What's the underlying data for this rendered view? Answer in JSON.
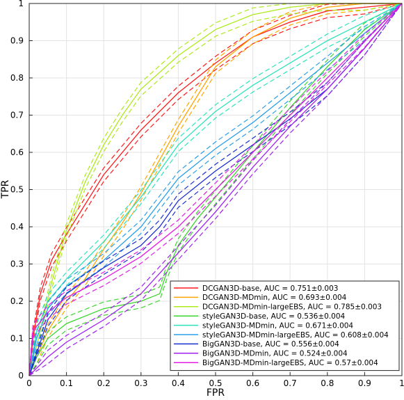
{
  "chart_data": {
    "type": "line",
    "xlabel": "FPR",
    "ylabel": "TPR",
    "xlim": [
      0,
      1
    ],
    "ylim": [
      0,
      1
    ],
    "grid": true,
    "legend_position": "bottom-right",
    "xticks": [
      "0",
      "0.1",
      "0.2",
      "0.3",
      "0.4",
      "0.5",
      "0.6",
      "0.7",
      "0.8",
      "0.9",
      "1"
    ],
    "yticks": [
      "0",
      "0.1",
      "0.2",
      "0.3",
      "0.4",
      "0.5",
      "0.6",
      "0.7",
      "0.8",
      "0.9",
      "1"
    ],
    "series": [
      {
        "name": "DCGAN3D-base, AUC = 0.751±0.003",
        "color": "#ff1a1a",
        "x": [
          0,
          0.01,
          0.03,
          0.06,
          0.1,
          0.15,
          0.2,
          0.3,
          0.4,
          0.5,
          0.6,
          0.7,
          0.8,
          0.9,
          1
        ],
        "y": [
          0,
          0.1,
          0.22,
          0.31,
          0.38,
          0.46,
          0.54,
          0.66,
          0.76,
          0.84,
          0.91,
          0.95,
          0.98,
          0.99,
          1
        ]
      },
      {
        "name": "DCGAN3D-MDmin, AUC = 0.693±0.004",
        "color": "#ffa500",
        "x": [
          0,
          0.02,
          0.05,
          0.1,
          0.15,
          0.2,
          0.25,
          0.3,
          0.35,
          0.4,
          0.45,
          0.5,
          0.6,
          0.7,
          0.8,
          0.9,
          1
        ],
        "y": [
          0,
          0.05,
          0.12,
          0.2,
          0.26,
          0.34,
          0.41,
          0.49,
          0.58,
          0.67,
          0.75,
          0.83,
          0.91,
          0.96,
          0.99,
          1,
          1
        ]
      },
      {
        "name": "DCGAN3D-MDmin-largeEBS, AUC = 0.785±0.003",
        "color": "#aeea1c",
        "x": [
          0,
          0.01,
          0.03,
          0.06,
          0.1,
          0.15,
          0.2,
          0.25,
          0.3,
          0.4,
          0.5,
          0.6,
          0.7,
          0.8,
          0.9,
          1
        ],
        "y": [
          0,
          0.04,
          0.12,
          0.25,
          0.39,
          0.52,
          0.62,
          0.7,
          0.77,
          0.86,
          0.93,
          0.97,
          0.99,
          1,
          1,
          1
        ]
      },
      {
        "name": "styleGAN3D-base, AUC = 0.536±0.004",
        "color": "#3ad62d",
        "x": [
          0,
          0.02,
          0.05,
          0.1,
          0.2,
          0.3,
          0.35,
          0.37,
          0.4,
          0.45,
          0.5,
          0.6,
          0.7,
          0.8,
          0.9,
          1
        ],
        "y": [
          0,
          0.05,
          0.1,
          0.14,
          0.18,
          0.2,
          0.22,
          0.28,
          0.35,
          0.42,
          0.48,
          0.6,
          0.72,
          0.83,
          0.93,
          1
        ]
      },
      {
        "name": "styleGAN3D-MDmin, AUC = 0.671±0.004",
        "color": "#2de3bd",
        "x": [
          0,
          0.02,
          0.05,
          0.1,
          0.2,
          0.3,
          0.4,
          0.5,
          0.6,
          0.7,
          0.8,
          0.9,
          1
        ],
        "y": [
          0,
          0.12,
          0.2,
          0.26,
          0.36,
          0.48,
          0.62,
          0.71,
          0.78,
          0.84,
          0.9,
          0.95,
          1
        ]
      },
      {
        "name": "styleGAN3D-MDmin-largeEBS, AUC = 0.608±0.004",
        "color": "#2a9fe8",
        "x": [
          0,
          0.02,
          0.05,
          0.1,
          0.2,
          0.3,
          0.4,
          0.5,
          0.6,
          0.7,
          0.8,
          0.9,
          1
        ],
        "y": [
          0,
          0.1,
          0.18,
          0.24,
          0.31,
          0.4,
          0.53,
          0.61,
          0.68,
          0.76,
          0.84,
          0.92,
          1
        ]
      },
      {
        "name": "BigGAN3D-base, AUC = 0.556±0.004",
        "color": "#1b2fd0",
        "x": [
          0,
          0.05,
          0.1,
          0.2,
          0.3,
          0.35,
          0.4,
          0.5,
          0.6,
          0.7,
          0.8,
          0.9,
          1
        ],
        "y": [
          0,
          0.15,
          0.22,
          0.29,
          0.35,
          0.4,
          0.47,
          0.55,
          0.62,
          0.69,
          0.77,
          0.88,
          1
        ]
      },
      {
        "name": "BigGAN3D-MDmin, AUC = 0.524±0.004",
        "color": "#a020f0",
        "x": [
          0,
          0.05,
          0.1,
          0.2,
          0.3,
          0.4,
          0.5,
          0.6,
          0.7,
          0.8,
          0.9,
          1
        ],
        "y": [
          0,
          0.05,
          0.09,
          0.15,
          0.22,
          0.33,
          0.44,
          0.56,
          0.67,
          0.77,
          0.88,
          1
        ]
      },
      {
        "name": "BigGAN3D-MDmin-largeEBS, AUC = 0.57±0.004",
        "color": "#e01ee0",
        "x": [
          0,
          0.01,
          0.05,
          0.1,
          0.2,
          0.3,
          0.4,
          0.5,
          0.6,
          0.7,
          0.8,
          0.9,
          1
        ],
        "y": [
          0,
          0.12,
          0.17,
          0.21,
          0.26,
          0.32,
          0.4,
          0.5,
          0.6,
          0.7,
          0.8,
          0.9,
          1
        ]
      }
    ]
  }
}
